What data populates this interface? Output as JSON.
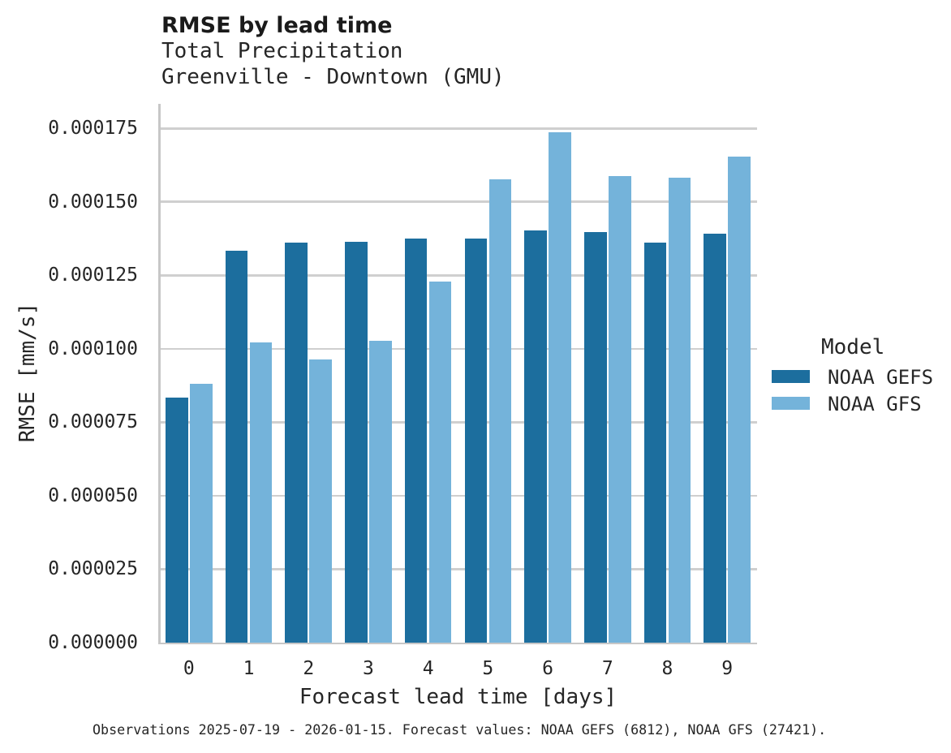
{
  "title": "RMSE by lead time",
  "subtitle_line1": "Total Precipitation",
  "subtitle_line2": "Greenville - Downtown (GMU)",
  "caption": "Observations 2025-07-19 - 2026-01-15. Forecast values: NOAA GEFS (6812), NOAA GFS (27421).",
  "legend": {
    "title": "Model",
    "entries": [
      {
        "label": "NOAA GEFS",
        "color": "#1C6E9E"
      },
      {
        "label": "NOAA GFS",
        "color": "#74B3DA"
      }
    ]
  },
  "colors": {
    "gefs_dark_blue": "#1C6E9E",
    "gfs_light_blue": "#74B3DA",
    "gridline_gray": "#CFCFCF",
    "spine_gray": "#C7C7C7",
    "text": "#262626"
  },
  "chart_data": {
    "type": "bar",
    "title": "RMSE by lead time",
    "subtitle": [
      "Total Precipitation",
      "Greenville - Downtown (GMU)"
    ],
    "xlabel": "Forecast lead time [days]",
    "ylabel": "RMSE [mm/s]",
    "categories": [
      "0",
      "1",
      "2",
      "3",
      "4",
      "5",
      "6",
      "7",
      "8",
      "9"
    ],
    "series": [
      {
        "name": "NOAA GEFS",
        "color": "#1C6E9E",
        "values": [
          8.33e-05,
          0.0001334,
          0.0001361,
          0.0001364,
          0.0001375,
          0.0001375,
          0.0001403,
          0.0001398,
          0.0001361,
          0.0001392
        ]
      },
      {
        "name": "NOAA GFS",
        "color": "#74B3DA",
        "values": [
          8.82e-05,
          0.0001022,
          9.64e-05,
          0.0001027,
          0.0001229,
          0.0001577,
          0.0001737,
          0.0001588,
          0.0001582,
          0.0001654
        ]
      }
    ],
    "y_ticks": [
      {
        "value": 0.0,
        "label": "0.000000"
      },
      {
        "value": 2.5e-05,
        "label": "0.000025"
      },
      {
        "value": 5e-05,
        "label": "0.000050"
      },
      {
        "value": 7.5e-05,
        "label": "0.000075"
      },
      {
        "value": 0.0001,
        "label": "0.000100"
      },
      {
        "value": 0.000125,
        "label": "0.000125"
      },
      {
        "value": 0.00015,
        "label": "0.000150"
      },
      {
        "value": 0.000175,
        "label": "0.000175"
      }
    ],
    "ylim": [
      0,
      0.00018375
    ],
    "grid": "horizontal",
    "legend_position": "right"
  }
}
